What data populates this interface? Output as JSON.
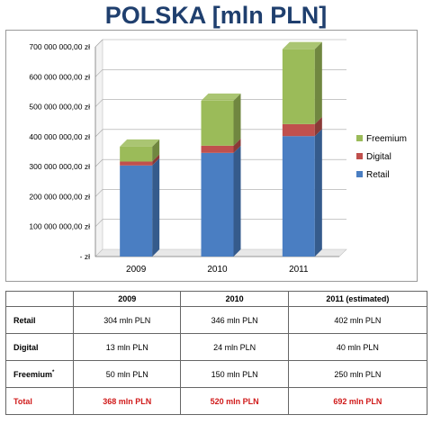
{
  "title": "POLSKA [mln PLN]",
  "colors": {
    "Retail": "#4a7ec2",
    "Digital": "#c0504d",
    "Freemium": "#9bbb59"
  },
  "chart_data": {
    "type": "bar",
    "stacked": true,
    "categories": [
      "2009",
      "2010",
      "2011"
    ],
    "series": [
      {
        "name": "Retail",
        "values": [
          304,
          346,
          402
        ]
      },
      {
        "name": "Digital",
        "values": [
          13,
          24,
          40
        ]
      },
      {
        "name": "Freemium",
        "values": [
          50,
          150,
          250
        ]
      }
    ],
    "yticks": [
      "-  zł",
      "100 000 000,00 zł",
      "200 000 000,00 zł",
      "300 000 000,00 zł",
      "400 000 000,00 zł",
      "500 000 000,00 zł",
      "600 000 000,00 zł",
      "700 000 000,00 zł"
    ],
    "ylim": [
      0,
      700
    ],
    "legend": "right",
    "legend_order": [
      "Freemium",
      "Digital",
      "Retail"
    ]
  },
  "table": {
    "headers": [
      "",
      "2009",
      "2010",
      "2011 (estimated)"
    ],
    "rows": [
      {
        "label": "Retail",
        "values": [
          "304 mln PLN",
          "346 mln PLN",
          "402 mln PLN"
        ]
      },
      {
        "label": "Digital",
        "values": [
          "13 mln PLN",
          "24 mln PLN",
          "40 mln PLN"
        ]
      },
      {
        "label": "Freemium",
        "sup": "*",
        "values": [
          "50 mln PLN",
          "150 mln PLN",
          "250 mln PLN"
        ]
      },
      {
        "label": "Total",
        "values": [
          "368 mln PLN",
          "520 mln PLN",
          "692 mln PLN"
        ]
      }
    ]
  }
}
